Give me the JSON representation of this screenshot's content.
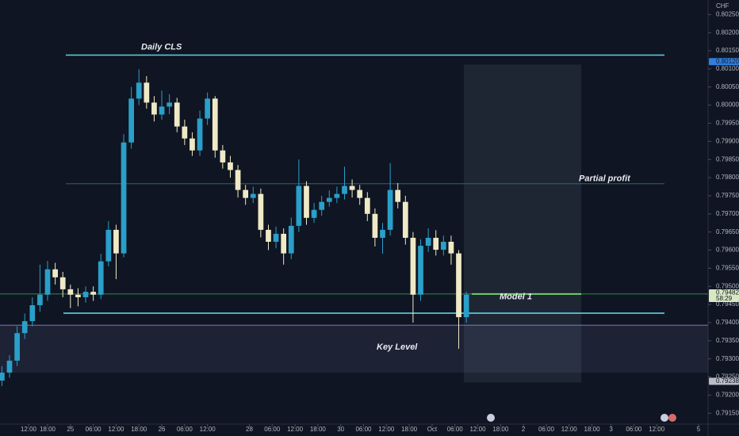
{
  "chart_data": {
    "type": "candlestick",
    "currency": "CHF",
    "ylim": [
      0.7912,
      0.8029
    ],
    "xlim": [
      -0.5,
      185.5
    ],
    "yticks": [
      {
        "value": 0.8025,
        "label": "0.80250"
      },
      {
        "value": 0.802,
        "label": "0.80200"
      },
      {
        "value": 0.8015,
        "label": "0.80150"
      },
      {
        "value": 0.801,
        "label": "0.80100"
      },
      {
        "value": 0.8005,
        "label": "0.80050"
      },
      {
        "value": 0.8,
        "label": "0.80000"
      },
      {
        "value": 0.7995,
        "label": "0.79950"
      },
      {
        "value": 0.799,
        "label": "0.79900"
      },
      {
        "value": 0.7985,
        "label": "0.79850"
      },
      {
        "value": 0.798,
        "label": "0.79800"
      },
      {
        "value": 0.7975,
        "label": "0.79750"
      },
      {
        "value": 0.797,
        "label": "0.79700"
      },
      {
        "value": 0.7965,
        "label": "0.79650"
      },
      {
        "value": 0.796,
        "label": "0.79600"
      },
      {
        "value": 0.7955,
        "label": "0.79550"
      },
      {
        "value": 0.795,
        "label": "0.79500"
      },
      {
        "value": 0.7945,
        "label": "0.79450"
      },
      {
        "value": 0.794,
        "label": "0.79400"
      },
      {
        "value": 0.7935,
        "label": "0.79350"
      },
      {
        "value": 0.793,
        "label": "0.79300"
      },
      {
        "value": 0.7925,
        "label": "0.79250"
      },
      {
        "value": 0.792,
        "label": "0.79200"
      },
      {
        "value": 0.7915,
        "label": "0.79150"
      }
    ],
    "xticks": [
      {
        "value": 7,
        "label": "12:00"
      },
      {
        "value": 12,
        "label": "18:00"
      },
      {
        "value": 18,
        "label": "25"
      },
      {
        "value": 24,
        "label": "06:00"
      },
      {
        "value": 30,
        "label": "12:00"
      },
      {
        "value": 36,
        "label": "18:00"
      },
      {
        "value": 42,
        "label": "26"
      },
      {
        "value": 48,
        "label": "06:00"
      },
      {
        "value": 54,
        "label": "12:00"
      },
      {
        "value": 65,
        "label": "28"
      },
      {
        "value": 71,
        "label": "06:00"
      },
      {
        "value": 77,
        "label": "12:00"
      },
      {
        "value": 83,
        "label": "18:00"
      },
      {
        "value": 89,
        "label": "30"
      },
      {
        "value": 95,
        "label": "06:00"
      },
      {
        "value": 101,
        "label": "12:00"
      },
      {
        "value": 107,
        "label": "18:00"
      },
      {
        "value": 113,
        "label": "Oct"
      },
      {
        "value": 119,
        "label": "06:00"
      },
      {
        "value": 125,
        "label": "12:00"
      },
      {
        "value": 131,
        "label": "18:00"
      },
      {
        "value": 137,
        "label": "2"
      },
      {
        "value": 143,
        "label": "06:00"
      },
      {
        "value": 149,
        "label": "12:00"
      },
      {
        "value": 155,
        "label": "18:00"
      },
      {
        "value": 160,
        "label": "3"
      },
      {
        "value": 166,
        "label": "06:00"
      },
      {
        "value": 172,
        "label": "12:00"
      },
      {
        "value": 183,
        "label": "5"
      }
    ],
    "up_color": "#2a9fc9",
    "down_color": "#efe9c6",
    "x": [
      0,
      2,
      4,
      6,
      8,
      10,
      12,
      14,
      16,
      18,
      20,
      22,
      24,
      26,
      28,
      30,
      32,
      34,
      36,
      38,
      40,
      42,
      44,
      46,
      48,
      50,
      52,
      54,
      56,
      58,
      60,
      62,
      64,
      66,
      68,
      70,
      72,
      74,
      76,
      78,
      80,
      82,
      84,
      86,
      88,
      90,
      92,
      94,
      96,
      98,
      100,
      102,
      104,
      106,
      108,
      110,
      112,
      114,
      116,
      118,
      120,
      122
    ],
    "open": [
      0.7924,
      0.79262,
      0.79295,
      0.79371,
      0.79404,
      0.79448,
      0.79477,
      0.79547,
      0.79525,
      0.79492,
      0.79477,
      0.7947,
      0.79485,
      0.79477,
      0.79569,
      0.79656,
      0.79591,
      0.79897,
      0.80018,
      0.80062,
      0.80007,
      0.79974,
      0.79996,
      0.80007,
      0.79941,
      0.79908,
      0.79875,
      0.79963,
      0.80018,
      0.79875,
      0.79842,
      0.79821,
      0.79766,
      0.79744,
      0.79755,
      0.79656,
      0.79623,
      0.79645,
      0.79591,
      0.79667,
      0.79777,
      0.79689,
      0.79711,
      0.79733,
      0.79744,
      0.79755,
      0.79777,
      0.79766,
      0.79744,
      0.797,
      0.79634,
      0.79656,
      0.79766,
      0.79733,
      0.79634,
      0.79477,
      0.79612,
      0.79634,
      0.79601,
      0.79623,
      0.79591,
      0.79415
    ],
    "high": [
      0.7928,
      0.7931,
      0.7939,
      0.79425,
      0.7947,
      0.7956,
      0.7957,
      0.79565,
      0.7954,
      0.79505,
      0.79495,
      0.795,
      0.795,
      0.7959,
      0.7968,
      0.7967,
      0.7992,
      0.8005,
      0.80099,
      0.8008,
      0.80025,
      0.8004,
      0.8003,
      0.8002,
      0.7996,
      0.79925,
      0.79985,
      0.80035,
      0.80025,
      0.7989,
      0.7986,
      0.79835,
      0.7978,
      0.79775,
      0.7977,
      0.7967,
      0.79665,
      0.7966,
      0.7969,
      0.7985,
      0.7979,
      0.7973,
      0.7975,
      0.79765,
      0.79775,
      0.7983,
      0.79795,
      0.7978,
      0.7976,
      0.79715,
      0.79675,
      0.7984,
      0.79785,
      0.7975,
      0.7965,
      0.7963,
      0.7966,
      0.79655,
      0.7964,
      0.7964,
      0.796,
      0.79485
    ],
    "low": [
      0.79225,
      0.79248,
      0.7928,
      0.79355,
      0.7939,
      0.7943,
      0.7946,
      0.79505,
      0.7947,
      0.7944,
      0.79445,
      0.79455,
      0.7946,
      0.79465,
      0.79555,
      0.7952,
      0.7958,
      0.7988,
      0.8,
      0.7999,
      0.79955,
      0.7996,
      0.79975,
      0.79925,
      0.7989,
      0.7986,
      0.7986,
      0.79945,
      0.79855,
      0.79825,
      0.798,
      0.79745,
      0.79725,
      0.7973,
      0.79635,
      0.796,
      0.79605,
      0.7956,
      0.79575,
      0.7965,
      0.7967,
      0.79675,
      0.79695,
      0.7972,
      0.7973,
      0.7974,
      0.79745,
      0.79725,
      0.7968,
      0.7961,
      0.7959,
      0.7964,
      0.79715,
      0.79615,
      0.794,
      0.7946,
      0.79595,
      0.79585,
      0.79585,
      0.7956,
      0.79328,
      0.794
    ],
    "close": [
      0.79262,
      0.79295,
      0.79371,
      0.79404,
      0.79448,
      0.79477,
      0.79547,
      0.79525,
      0.79492,
      0.79477,
      0.7947,
      0.79485,
      0.79477,
      0.79569,
      0.79656,
      0.79591,
      0.79897,
      0.80018,
      0.80062,
      0.80007,
      0.79974,
      0.79996,
      0.80007,
      0.79941,
      0.79908,
      0.79875,
      0.79963,
      0.80018,
      0.79875,
      0.79842,
      0.79821,
      0.79766,
      0.79744,
      0.79755,
      0.79656,
      0.79623,
      0.79645,
      0.79591,
      0.79667,
      0.79777,
      0.79689,
      0.79711,
      0.79733,
      0.79744,
      0.79755,
      0.79777,
      0.79766,
      0.79744,
      0.797,
      0.79634,
      0.79656,
      0.79766,
      0.79733,
      0.79634,
      0.79477,
      0.79612,
      0.79634,
      0.79601,
      0.79623,
      0.79591,
      0.79415,
      0.79477
    ],
    "levels": [
      {
        "label": "Daily CLS",
        "value": 0.80138,
        "color": "#5ad4e6"
      },
      {
        "label": "Partial profit",
        "value": 0.79783,
        "color": "#3d6a7a"
      },
      {
        "label": "Model 1",
        "value": 0.79479,
        "color": "#3fae5a"
      },
      {
        "value": 0.79426,
        "color": "#5ad4e6"
      }
    ],
    "zone": {
      "label": "Key Level",
      "top": 0.79393,
      "bottom": 0.79262,
      "color": "#8a84c8"
    },
    "position_box": {
      "top": 0.80112,
      "bottom": 0.79235,
      "color": "#8fa6bf"
    },
    "price_labels": [
      {
        "value": 0.8012,
        "label": "0.80120",
        "color": "#2f7fe0"
      },
      {
        "value": 0.79482,
        "label": "0.79482",
        "countdown": "58:29",
        "color": "#d9e8c4"
      },
      {
        "value": 0.79238,
        "label": "0.79238",
        "color": "#b9bcc4"
      }
    ]
  }
}
